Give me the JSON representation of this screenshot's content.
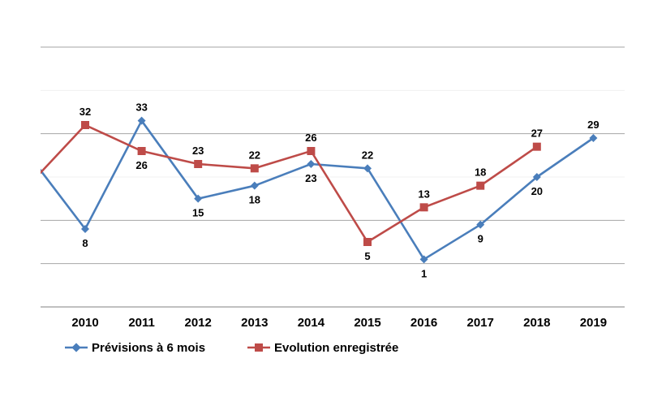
{
  "chart_data": {
    "type": "line",
    "categories": [
      "2010",
      "2011",
      "2012",
      "2013",
      "2014",
      "2015",
      "2016",
      "2017",
      "2018",
      "2019"
    ],
    "ylim": [
      -10,
      50
    ],
    "grid": true,
    "legend_position": "bottom-left",
    "series": [
      {
        "name": "Prévisions à 6 mois",
        "color": "#4a7ebb",
        "marker": "diamond",
        "values": [
          8,
          33,
          15,
          18,
          23,
          22,
          1,
          9,
          20,
          29
        ],
        "labels": [
          "8",
          "33",
          "15",
          "18",
          "23",
          "22",
          "1",
          "9",
          "20",
          "29"
        ],
        "label_positions": [
          "below",
          "above",
          "below",
          "below",
          "below",
          "above",
          "below",
          "below",
          "below",
          "above"
        ]
      },
      {
        "name": "Evolution enregistrée",
        "color": "#be4b48",
        "marker": "square",
        "values": [
          32,
          26,
          23,
          22,
          26,
          5,
          13,
          18,
          27,
          null
        ],
        "labels": [
          "32",
          "26",
          "23",
          "22",
          "26",
          "5",
          "13",
          "18",
          "27",
          ""
        ],
        "label_positions": [
          "above",
          "below",
          "above",
          "above",
          "above",
          "below",
          "above",
          "above",
          "above",
          "above"
        ]
      }
    ]
  }
}
